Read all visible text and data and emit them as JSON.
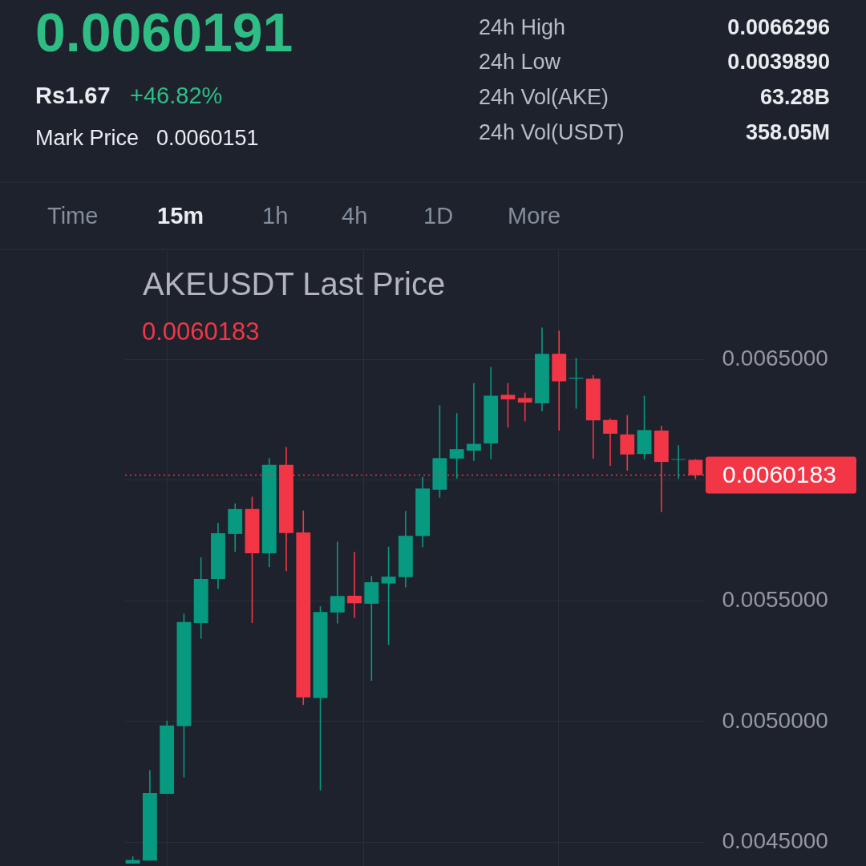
{
  "chart_data": {
    "type": "candlestick",
    "title": "AKEUSDT Last Price",
    "categories": [
      null,
      null,
      null,
      null,
      null,
      null,
      null,
      null,
      null,
      null,
      null,
      null,
      null,
      null,
      null,
      null,
      null,
      null,
      null,
      null,
      null,
      null,
      null,
      null,
      null,
      null,
      null,
      null,
      null,
      null,
      null,
      null,
      null,
      null
    ],
    "ohlc": [
      [
        0.00441,
        0.00444,
        0.00441,
        0.004425
      ],
      [
        0.004422,
        0.004797,
        0.004422,
        0.004702
      ],
      [
        0.004699,
        0.005002,
        0.004699,
        0.004982
      ],
      [
        0.004979,
        0.005444,
        0.004767,
        0.00541
      ],
      [
        0.005406,
        0.005678,
        0.005341,
        0.005589
      ],
      [
        0.005589,
        0.005821,
        0.005547,
        0.005778
      ],
      [
        0.005775,
        0.005901,
        0.005701,
        0.005878
      ],
      [
        0.005878,
        0.005929,
        0.005406,
        0.005695
      ],
      [
        0.005695,
        0.006089,
        0.005638,
        0.006061
      ],
      [
        0.006061,
        0.006135,
        0.005621,
        0.005779
      ],
      [
        0.005781,
        0.005872,
        0.005067,
        0.005098
      ],
      [
        0.005096,
        0.005475,
        0.004713,
        0.005452
      ],
      [
        0.00545,
        0.005743,
        0.005404,
        0.005518
      ],
      [
        0.005519,
        0.005701,
        0.005428,
        0.005488
      ],
      [
        0.005486,
        0.005601,
        0.005167,
        0.005575
      ],
      [
        0.00557,
        0.005722,
        0.005315,
        0.005598
      ],
      [
        0.005596,
        0.00587,
        0.005554,
        0.005767
      ],
      [
        0.005766,
        0.00601,
        0.00572,
        0.005963
      ],
      [
        0.005958,
        0.006308,
        0.005925,
        0.006089
      ],
      [
        0.006087,
        0.006275,
        0.006004,
        0.006126
      ],
      [
        0.00612,
        0.0064,
        0.006078,
        0.006148
      ],
      [
        0.00615,
        0.006466,
        0.006084,
        0.006347
      ],
      [
        0.006351,
        0.0064,
        0.006216,
        0.006332
      ],
      [
        0.006338,
        0.00636,
        0.006242,
        0.006319
      ],
      [
        0.006316,
        0.00663,
        0.006283,
        0.006521
      ],
      [
        0.006521,
        0.006617,
        0.006203,
        0.006407
      ],
      [
        0.006418,
        0.006503,
        0.006294,
        0.006422
      ],
      [
        0.006418,
        0.006433,
        0.006087,
        0.006245
      ],
      [
        0.006247,
        0.006253,
        0.006057,
        0.00619
      ],
      [
        0.006187,
        0.006267,
        0.006037,
        0.006104
      ],
      [
        0.006106,
        0.006347,
        0.006084,
        0.006205
      ],
      [
        0.006203,
        0.006223,
        0.005866,
        0.006073
      ],
      [
        0.006082,
        0.006142,
        0.006004,
        0.006085
      ],
      [
        0.006082,
        0.006085,
        0.006002,
        0.0060183
      ]
    ],
    "colors": [
      "#089981",
      "#089981",
      "#089981",
      "#089981",
      "#089981",
      "#089981",
      "#089981",
      "#f23645",
      "#089981",
      "#f23645",
      "#f23645",
      "#089981",
      "#089981",
      "#f23645",
      "#089981",
      "#089981",
      "#089981",
      "#089981",
      "#089981",
      "#089981",
      "#089981",
      "#089981",
      "#f23645",
      "#f23645",
      "#089981",
      "#f23645",
      "#089981",
      "#f23645",
      "#f23645",
      "#f23645",
      "#089981",
      "#f23645",
      "#089981",
      "#f23645"
    ],
    "ylim": [
      0.0044,
      0.00695
    ],
    "yticks": [
      {
        "value": 0.0045,
        "label": "0.0045000"
      },
      {
        "value": 0.005,
        "label": "0.0050000"
      },
      {
        "value": 0.0055,
        "label": "0.0055000"
      },
      {
        "value": 0.006,
        "label": null
      },
      {
        "value": 0.0065,
        "label": "0.0065000"
      }
    ],
    "ref_lines": [
      {
        "axis": "y",
        "value": 0.0060183,
        "label": "0.0060183",
        "color": "#f23645",
        "line_style": "dotted"
      }
    ],
    "grid": true,
    "legend": false,
    "tick_labels": "y",
    "annotations": [
      "0.0060191",
      "Rs1.67",
      "+46.82%",
      "Mark Price",
      "0.0060151",
      "24h High",
      "0.0066296",
      "24h Low",
      "0.0039890",
      "24h Vol(AKE)",
      "63.28B",
      "24h Vol(USDT)",
      "358.05M",
      "Time",
      "15m",
      "1h",
      "4h",
      "1D",
      "More",
      "0.0060183"
    ]
  }
}
